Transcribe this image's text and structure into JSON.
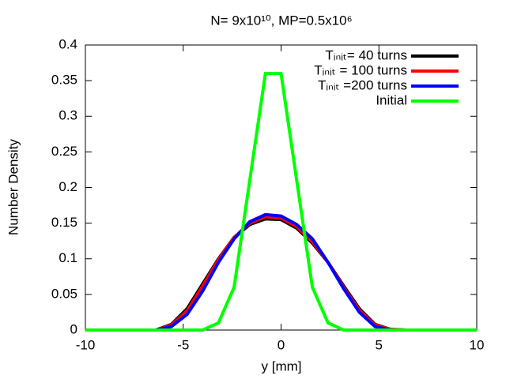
{
  "chart_data": {
    "type": "line",
    "title": "N= 9x10¹⁰, MP=0.5x10⁶",
    "xlabel": "y [mm]",
    "ylabel": "Number Density",
    "x": [
      -10,
      -9.6,
      -8.8,
      -8,
      -7.2,
      -6.4,
      -5.6,
      -4.8,
      -4,
      -3.2,
      -2.4,
      -1.6,
      -0.8,
      0,
      0.8,
      1.6,
      2.4,
      3.2,
      4,
      4.8,
      5.6,
      6.4,
      7.2,
      8,
      8.8,
      9.6,
      10
    ],
    "series": [
      {
        "name": "Tᵢₙᵢₜ= 40 turns",
        "color": "#000000",
        "values": [
          0,
          0,
          0,
          0,
          0,
          0,
          0.008,
          0.03,
          0.065,
          0.1,
          0.13,
          0.148,
          0.156,
          0.155,
          0.143,
          0.122,
          0.095,
          0.062,
          0.03,
          0.008,
          0.001,
          0,
          0,
          0,
          0,
          0,
          0
        ]
      },
      {
        "name": "Tᵢₙᵢₜ = 100 turns",
        "color": "#ff0000",
        "values": [
          0,
          0,
          0,
          0,
          0,
          0,
          0.007,
          0.027,
          0.062,
          0.099,
          0.13,
          0.15,
          0.159,
          0.157,
          0.145,
          0.124,
          0.095,
          0.06,
          0.028,
          0.007,
          0.001,
          0,
          0,
          0,
          0,
          0,
          0
        ]
      },
      {
        "name": "Tᵢₙᵢₜ =200 turns",
        "color": "#0000ff",
        "values": [
          0,
          0,
          0,
          0,
          0,
          0,
          0.005,
          0.022,
          0.055,
          0.095,
          0.128,
          0.152,
          0.162,
          0.16,
          0.148,
          0.128,
          0.095,
          0.058,
          0.025,
          0.005,
          0,
          0,
          0,
          0,
          0,
          0,
          0
        ]
      },
      {
        "name": "Initial",
        "color": "#00ff00",
        "values": [
          0,
          0,
          0,
          0,
          0,
          0,
          0,
          0,
          0,
          0.01,
          0.06,
          0.21,
          0.36,
          0.36,
          0.21,
          0.06,
          0.01,
          0,
          0,
          0,
          0,
          0,
          0,
          0,
          0,
          0,
          0
        ]
      }
    ],
    "xlim": [
      -10,
      10
    ],
    "ylim": [
      0,
      0.4
    ],
    "xticks": [
      -10,
      -5,
      0,
      5,
      10
    ],
    "yticks": [
      0,
      0.05,
      0.1,
      0.15,
      0.2,
      0.25,
      0.3,
      0.35,
      0.4
    ],
    "legend": "top-right"
  }
}
